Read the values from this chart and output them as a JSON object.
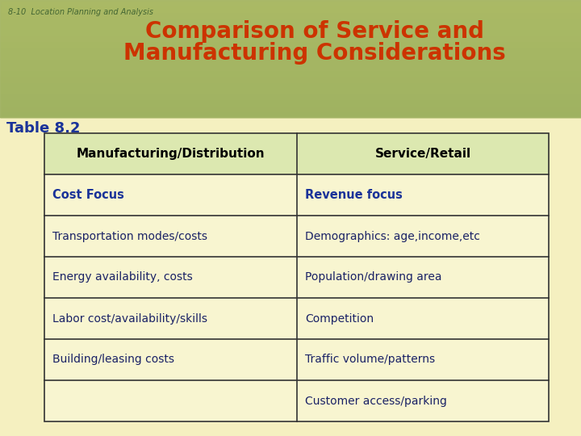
{
  "title_line1": "Comparison of Service and",
  "title_line2": "Manufacturing Considerations",
  "subtitle": "8-10  Location Planning and Analysis",
  "table_label": "Table 8.2",
  "header_col1": "Manufacturing/Distribution",
  "header_col2": "Service/Retail",
  "rows": [
    [
      "Cost Focus",
      "Revenue focus"
    ],
    [
      "Transportation modes/costs",
      "Demographics: age,income,etc"
    ],
    [
      "Energy availability, costs",
      "Population/drawing area"
    ],
    [
      "Labor cost/availability/skills",
      "Competition"
    ],
    [
      "Building/leasing costs",
      "Traffic volume/patterns"
    ],
    [
      "",
      "Customer access/parking"
    ]
  ],
  "bg_color": "#f5f0c0",
  "header_bg": "#dce8b0",
  "cell_bg": "#f8f5d0",
  "title_color": "#cc3300",
  "subtitle_color": "#446633",
  "table_label_color": "#1a3399",
  "header_text_color": "#000000",
  "row1_text_color": "#1a3399",
  "row_text_color": "#1a2266",
  "border_color": "#333333",
  "top_strip_color1": "#88aa44",
  "top_strip_color2": "#aabb66",
  "figsize": [
    7.2,
    5.4
  ],
  "dpi": 100
}
